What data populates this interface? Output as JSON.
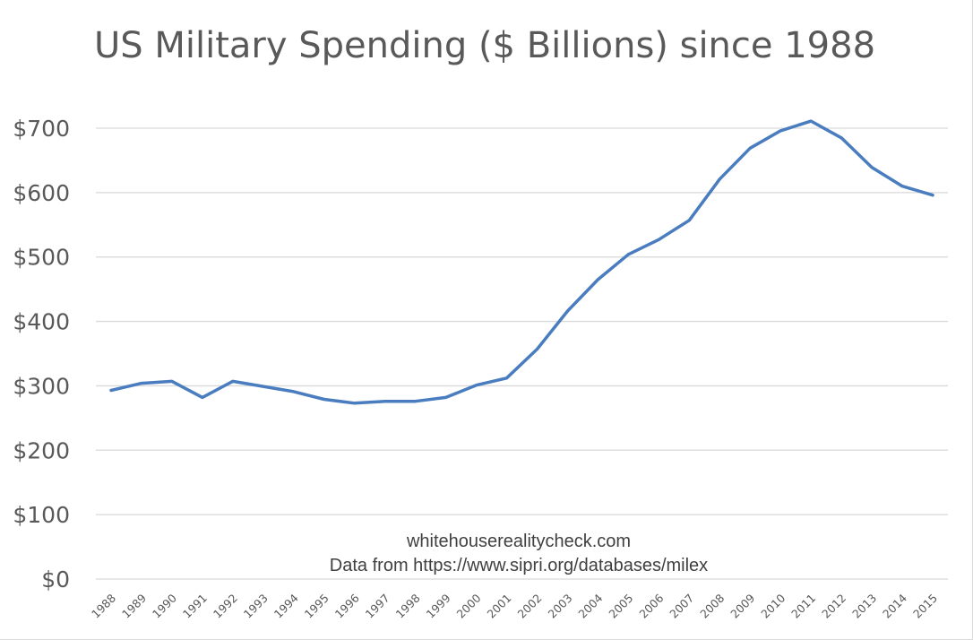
{
  "chart_data": {
    "type": "line",
    "title": "US Military Spending ($ Billions) since 1988",
    "xlabel": "",
    "ylabel": "",
    "y_tick_labels": [
      "$0",
      "$100",
      "$200",
      "$300",
      "$400",
      "$500",
      "$600",
      "$700"
    ],
    "y_ticks": [
      0,
      100,
      200,
      300,
      400,
      500,
      600,
      700
    ],
    "ylim": [
      0,
      700
    ],
    "grid": true,
    "legend": "none",
    "x": [
      "1988",
      "1989",
      "1990",
      "1991",
      "1992",
      "1993",
      "1994",
      "1995",
      "1996",
      "1997",
      "1998",
      "1999",
      "2000",
      "2001",
      "2002",
      "2003",
      "2004",
      "2005",
      "2006",
      "2007",
      "2008",
      "2009",
      "2010",
      "2011",
      "2012",
      "2013",
      "2014",
      "2015"
    ],
    "series": [
      {
        "values": [
          293,
          304,
          307,
          282,
          307,
          299,
          291,
          279,
          273,
          276,
          276,
          282,
          301,
          312,
          357,
          416,
          465,
          504,
          527,
          557,
          621,
          669,
          696,
          711,
          685,
          639,
          610,
          596
        ],
        "color": "#4a7dbf"
      }
    ],
    "annotations": [
      "whitehouserealitycheck.com",
      "Data from https://www.sipri.org/databases/milex"
    ]
  }
}
